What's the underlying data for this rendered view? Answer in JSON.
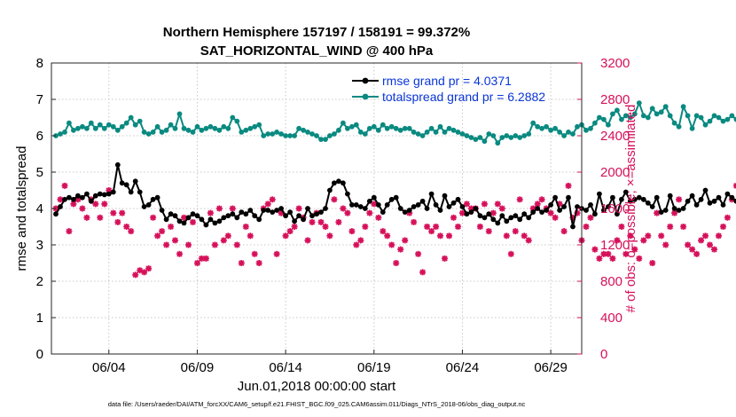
{
  "chart_data": {
    "type": "line",
    "title": "Northern Hemisphere 157197 / 158191 = 99.372%",
    "subtitle": "SAT_HORIZONTAL_WIND @ 400 hPa",
    "xlabel": "Jun.01,2018 00:00:00 start",
    "ylabel_left": "rmse and totalspread",
    "ylabel_right": "# of obs: o=possible; ×=assimilated",
    "footer": "data file: /Users/raeder/DAI/ATM_forcXX/CAM6_setup/f.e21.FHIST_BGC.f09_025.CAM6assim.011/Diags_NTrS_2018-06/obs_diag_output.nc",
    "xlim": [
      0.75,
      30.75
    ],
    "x_ticks": [
      4,
      9,
      14,
      19,
      24,
      29
    ],
    "x_tick_labels": [
      "06/04",
      "06/09",
      "06/14",
      "06/19",
      "06/24",
      "06/29"
    ],
    "ylim_left": [
      0,
      8
    ],
    "y_left_ticks": [
      "0",
      "1",
      "2",
      "3",
      "4",
      "5",
      "6",
      "7",
      "8"
    ],
    "ylim_right": [
      0,
      3200
    ],
    "y_right_ticks": [
      "0",
      "400",
      "800",
      "1200",
      "1600",
      "2000",
      "2400",
      "2800",
      "3200"
    ],
    "grid": "dotted",
    "legend_position": "top-right",
    "colors": {
      "rmse": "#000000",
      "spread": "#0a8a80",
      "obs": "#d6105a",
      "legend_text": "#0a36d8"
    },
    "series": [
      {
        "name": "rmse grand pr = 4.0371",
        "axis": "left",
        "start_x": 1.0,
        "step": 0.25,
        "values": [
          3.85,
          4.05,
          4.25,
          4.3,
          4.25,
          4.35,
          4.3,
          4.4,
          4.2,
          4.35,
          4.4,
          4.38,
          4.4,
          4.45,
          5.2,
          4.7,
          4.65,
          4.45,
          4.75,
          4.45,
          4.05,
          4.1,
          4.25,
          4.3,
          3.95,
          3.7,
          3.85,
          3.8,
          3.65,
          3.6,
          3.75,
          3.85,
          3.8,
          3.7,
          3.55,
          3.7,
          3.6,
          3.65,
          3.75,
          3.8,
          3.85,
          3.75,
          3.9,
          3.85,
          3.95,
          3.8,
          3.7,
          3.95,
          3.95,
          3.9,
          3.95,
          4.0,
          3.8,
          3.9,
          3.65,
          3.8,
          3.7,
          4.0,
          3.8,
          3.85,
          3.9,
          4.0,
          4.5,
          4.7,
          4.75,
          4.7,
          4.4,
          4.1,
          4.1,
          4.05,
          4.0,
          4.2,
          4.3,
          4.1,
          3.9,
          4.1,
          4.25,
          4.3,
          4.0,
          3.9,
          3.95,
          4.05,
          4.1,
          4.2,
          4.0,
          4.4,
          4.1,
          3.95,
          4.35,
          4.05,
          4.15,
          4.25,
          4.05,
          3.85,
          3.9,
          4.0,
          3.8,
          3.75,
          3.85,
          3.7,
          3.6,
          3.8,
          3.65,
          3.75,
          3.8,
          3.7,
          3.85,
          3.75,
          3.9,
          4.0,
          3.9,
          3.95,
          4.1,
          4.3,
          3.95,
          4.05,
          4.3,
          3.5,
          4.05,
          4.0,
          3.95,
          4.1,
          3.85,
          4.4,
          3.95,
          4.05,
          4.3,
          3.85,
          4.25,
          4.45,
          4.2,
          4.25,
          4.3,
          4.25,
          4.15,
          4.05,
          4.3,
          3.9,
          3.95,
          4.35,
          4.0,
          3.95,
          4.0,
          4.2,
          4.35,
          4.1,
          4.25,
          4.5,
          4.15,
          4.2,
          4.3,
          4.1,
          4.4,
          4.3,
          4.2,
          4.35,
          4.25,
          4.0,
          4.15,
          4.25,
          4.35,
          4.1,
          3.9,
          4.0,
          4.05,
          4.2,
          3.95,
          4.4,
          3.85,
          3.9,
          4.3,
          4.2,
          4.15,
          4.35,
          4.05,
          4.1,
          4.15,
          4.05,
          4.1,
          3.85,
          3.9,
          3.95,
          3.7,
          3.8,
          3.75,
          4.25,
          3.85,
          3.8
        ]
      },
      {
        "name": "totalspread grand pr = 6.2882",
        "axis": "left",
        "start_x": 1.0,
        "step": 0.25,
        "values": [
          6.0,
          6.05,
          6.1,
          6.35,
          6.15,
          6.2,
          6.25,
          6.2,
          6.35,
          6.2,
          6.3,
          6.2,
          6.3,
          6.25,
          6.15,
          6.25,
          6.35,
          6.5,
          6.3,
          6.4,
          6.1,
          6.05,
          6.1,
          6.25,
          6.1,
          6.15,
          6.3,
          6.2,
          6.6,
          6.2,
          6.15,
          6.1,
          6.25,
          6.15,
          6.2,
          6.25,
          6.2,
          6.15,
          6.25,
          6.2,
          6.5,
          6.4,
          6.1,
          6.15,
          6.2,
          6.25,
          6.3,
          6.0,
          6.05,
          6.05,
          6.1,
          6.05,
          6.0,
          6.0,
          6.0,
          6.2,
          6.15,
          6.1,
          6.05,
          6.0,
          5.9,
          5.9,
          6.0,
          6.05,
          6.15,
          6.35,
          6.2,
          6.25,
          6.3,
          6.1,
          6.05,
          6.2,
          6.25,
          6.15,
          6.3,
          6.2,
          6.25,
          6.2,
          6.15,
          6.2,
          6.2,
          6.1,
          6.05,
          6.0,
          6.1,
          6.2,
          6.1,
          6.25,
          6.1,
          6.2,
          6.15,
          6.1,
          6.05,
          6.0,
          5.95,
          5.9,
          5.95,
          5.85,
          6.05,
          6.0,
          5.8,
          5.95,
          6.0,
          5.95,
          6.0,
          5.95,
          6.0,
          6.05,
          6.35,
          6.25,
          6.2,
          6.25,
          6.15,
          6.2,
          6.1,
          6.0,
          6.1,
          6.05,
          6.25,
          6.3,
          6.15,
          6.2,
          6.35,
          6.5,
          6.45,
          6.3,
          6.6,
          6.7,
          6.45,
          6.55,
          6.5,
          6.6,
          6.9,
          6.55,
          6.5,
          6.75,
          6.6,
          6.65,
          6.8,
          6.55,
          6.35,
          6.25,
          6.8,
          6.55,
          6.2,
          6.55,
          6.5,
          6.3,
          6.4,
          6.55,
          6.5,
          6.4,
          6.45,
          6.55,
          6.45,
          6.75,
          6.5,
          6.45,
          6.6,
          6.55,
          6.5,
          6.85,
          6.7,
          6.7,
          6.55,
          6.65,
          6.55,
          6.5,
          6.85,
          6.6,
          6.55,
          6.7,
          6.55,
          6.65,
          6.8,
          6.7,
          6.55,
          6.6,
          6.5,
          6.35,
          6.4,
          6.25,
          6.35,
          6.3,
          6.4,
          6.35,
          6.4,
          6.5,
          6.55,
          6.85,
          6.7,
          6.65
        ]
      },
      {
        "name": "assimilated obs",
        "axis": "right",
        "marker": "asterisk",
        "start_x": 1.0,
        "step": 0.25,
        "values": [
          1600,
          1700,
          1850,
          1350,
          1650,
          1700,
          1600,
          1500,
          1700,
          1650,
          1500,
          1650,
          1800,
          1550,
          1450,
          1550,
          1400,
          1350,
          870,
          920,
          900,
          940,
          1500,
          1300,
          1350,
          1200,
          1400,
          1250,
          1100,
          1500,
          1200,
          1450,
          1000,
          1050,
          1050,
          1550,
          1200,
          1600,
          1250,
          1300,
          1600,
          1200,
          1000,
          1400,
          1300,
          1100,
          1000,
          1600,
          1650,
          1700,
          1100,
          1550,
          1300,
          1350,
          1400,
          1600,
          1500,
          1250,
          1450,
          1550,
          1450,
          1400,
          1300,
          1700,
          1450,
          1600,
          1550,
          1350,
          1200,
          1250,
          1400,
          1550,
          1650,
          1500,
          1350,
          1300,
          1200,
          1000,
          1150,
          1250,
          1550,
          1450,
          1100,
          900,
          1400,
          1350,
          1400,
          1300,
          1050,
          1300,
          1500,
          1400,
          1550,
          1650,
          1600,
          1600,
          1400,
          1650,
          1350,
          1550,
          1650,
          1600,
          1300,
          1100,
          1350,
          1700,
          1300,
          1250,
          1600,
          1650,
          1700,
          1600,
          1550,
          1500,
          1650,
          1350,
          1850,
          1500,
          1550,
          1250,
          1400,
          1500,
          1150,
          1050,
          1100,
          1100,
          1050,
          1250,
          1400,
          1100,
          1300,
          1150,
          1050,
          1250,
          1300,
          1000,
          1550,
          1300,
          1200,
          1400,
          1550,
          1700,
          1400,
          1200,
          1150,
          1100,
          1250,
          1300,
          1200,
          1150,
          1300,
          1400,
          1500,
          1700,
          1850,
          2250,
          2450,
          2500,
          1900,
          2050,
          1700,
          2000,
          2150,
          1750,
          1350,
          1550,
          1200,
          1700,
          1650,
          1450,
          1300,
          1100,
          1350,
          1550,
          1300,
          1450,
          1200,
          1250,
          1550,
          1600,
          1400,
          1350,
          1100,
          950,
          1000,
          1350,
          1200,
          1400,
          1250,
          1300,
          1550,
          1650,
          1500,
          1200,
          1300,
          1100,
          1050,
          1200,
          1250,
          1500,
          1400,
          1350,
          1550,
          1250,
          1300,
          1150,
          1100,
          1300,
          1100,
          1350,
          1500,
          1450,
          1600,
          1350,
          1200,
          1550,
          1550,
          1650,
          1450,
          1350,
          1550,
          1300,
          1100,
          1000,
          1400,
          1200,
          1150,
          1200,
          1400,
          1150,
          1500,
          1150,
          1200,
          850,
          800,
          800,
          900,
          850,
          1250,
          1050,
          1150,
          1000,
          950,
          1000,
          1100
        ]
      }
    ]
  },
  "legend": {
    "rmse_label": "rmse grand pr = 4.0371",
    "spread_label": "totalspread grand pr = 6.2882"
  }
}
